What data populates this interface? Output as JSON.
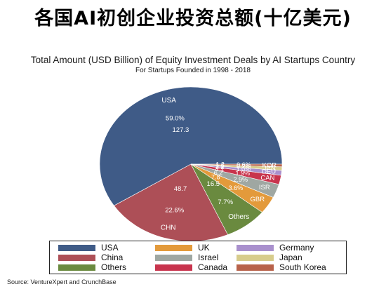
{
  "page": {
    "cn_title": "各国AI初创企业投资总额(十亿美元)",
    "source": "Source: VentureXpert and CrunchBase"
  },
  "chart_data": {
    "type": "pie",
    "title": "Total Amount (USD Billion) of Equity Investment Deals by AI Startups Country",
    "subtitle": "For Startups Founded in 1998 - 2018",
    "slices": [
      {
        "key": "usa",
        "label": "USA",
        "legend": "USA",
        "value": 127.3,
        "percent": "59.0%",
        "value_text": "127.3",
        "color": "#3f5b87"
      },
      {
        "key": "chn",
        "label": "CHN",
        "legend": "China",
        "value": 48.7,
        "percent": "22.6%",
        "value_text": "48.7",
        "color": "#ad4f57"
      },
      {
        "key": "others",
        "label": "Others",
        "legend": "Others",
        "value": 16.5,
        "percent": "7.7%",
        "value_text": "16.5",
        "color": "#6a8a3f"
      },
      {
        "key": "gbr",
        "label": "GBR",
        "legend": "UK",
        "value": 7.8,
        "percent": "3.6%",
        "value_text": "7.8",
        "color": "#e39a3b"
      },
      {
        "key": "isr",
        "label": "ISR",
        "legend": "Israel",
        "value": 6.2,
        "percent": "2.9%",
        "value_text": "6.2",
        "color": "#9fa7a2"
      },
      {
        "key": "can",
        "label": "CAN",
        "legend": "Canada",
        "value": 4.1,
        "percent": "1.9%",
        "value_text": "4.1",
        "color": "#c8344d"
      },
      {
        "key": "deu",
        "label": "DEU",
        "legend": "Germany",
        "value": 2.2,
        "percent": "1.0%",
        "value_text": "2.2",
        "color": "#a990cd"
      },
      {
        "key": "jpn",
        "label": "JPN",
        "legend": "Japan",
        "value": 1.6,
        "percent": "0.7%",
        "value_text": "1.6",
        "color": "#d7cc8c"
      },
      {
        "key": "kor",
        "label": "KOR",
        "legend": "South Korea",
        "value": 1.2,
        "percent": "0.6%",
        "value_text": "1.2",
        "color": "#b8624a"
      }
    ],
    "legend_order": [
      "usa",
      "chn",
      "others",
      "gbr",
      "isr",
      "can",
      "deu",
      "jpn",
      "kor"
    ]
  }
}
